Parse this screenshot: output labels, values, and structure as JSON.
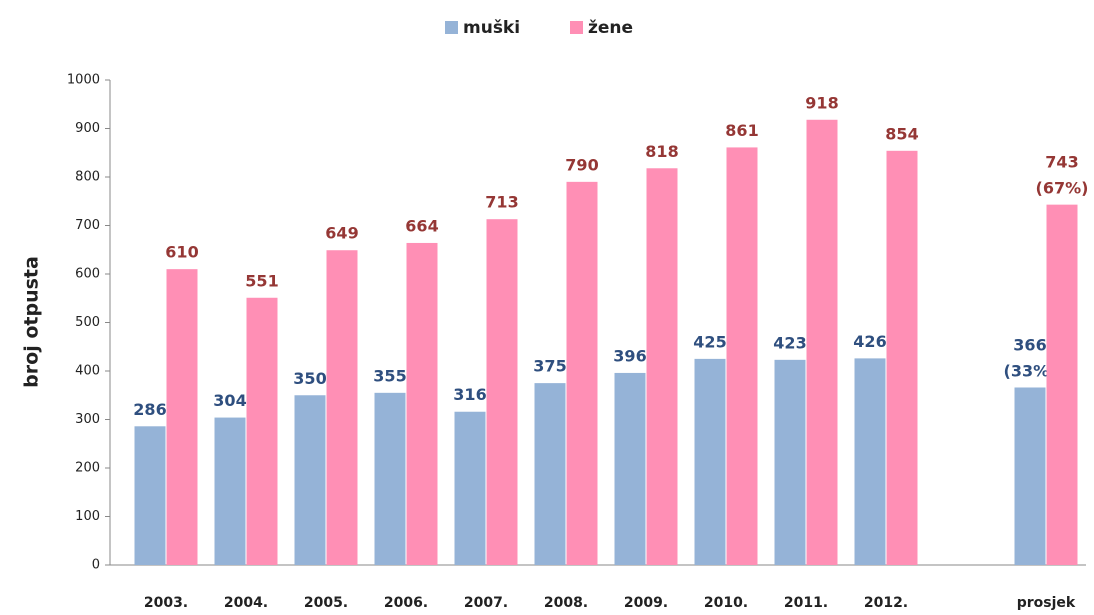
{
  "chart_data": {
    "type": "bar",
    "categories": [
      "2003.",
      "2004.",
      "2005.",
      "2006.",
      "2007.",
      "2008.",
      "2009.",
      "2010.",
      "2011.",
      "2012.",
      null,
      "prosjek"
    ],
    "series": [
      {
        "name": "muški",
        "color": "#95b3d7",
        "label_color": "#2f4f7f",
        "values": [
          286,
          304,
          350,
          355,
          316,
          375,
          396,
          425,
          423,
          426,
          null,
          366
        ],
        "value_labels": [
          null,
          null,
          null,
          null,
          null,
          null,
          null,
          null,
          null,
          null,
          null,
          "366 (33%)"
        ]
      },
      {
        "name": "žene",
        "color": "#ff8fb5",
        "label_color": "#953735",
        "values": [
          610,
          551,
          649,
          664,
          713,
          790,
          818,
          861,
          918,
          854,
          null,
          743
        ],
        "value_labels": [
          null,
          null,
          null,
          null,
          null,
          null,
          null,
          null,
          null,
          null,
          null,
          "743 (67%)"
        ]
      }
    ],
    "y_label": "broj otpusta",
    "ylim": [
      0,
      1000
    ],
    "yticks": [
      0,
      100,
      200,
      300,
      400,
      500,
      600,
      700,
      800,
      900,
      1000
    ],
    "grid": false,
    "legend": "top"
  }
}
